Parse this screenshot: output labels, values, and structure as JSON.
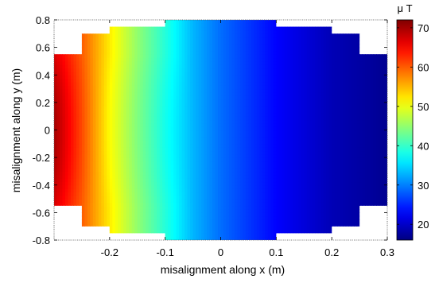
{
  "chart_data": {
    "type": "heatmap",
    "title": "",
    "xlabel": "misalignment along x (m)",
    "ylabel": "misalignment along y (m)",
    "xlim": [
      -0.3,
      0.3
    ],
    "ylim": [
      -0.8,
      0.8
    ],
    "xticks": [
      -0.2,
      -0.1,
      0,
      0.1,
      0.2,
      0.3
    ],
    "xtick_labels": [
      "-0.2",
      "-0.1",
      "0",
      "0.1",
      "0.2",
      "0.3"
    ],
    "yticks": [
      -0.8,
      -0.6,
      -0.4,
      -0.2,
      0,
      0.2,
      0.4,
      0.6,
      0.8
    ],
    "ytick_labels": [
      "-0.8",
      "-0.6",
      "-0.4",
      "-0.2",
      "0",
      "0.2",
      "0.4",
      "0.6",
      "0.8"
    ],
    "grid": false,
    "colormap": "jet",
    "colorbar": {
      "label": "μ T",
      "range": [
        16,
        72
      ],
      "ticks": [
        20,
        30,
        40,
        50,
        60,
        70
      ],
      "tick_labels": [
        "20",
        "30",
        "40",
        "50",
        "60",
        "70"
      ],
      "placement": "right"
    },
    "domain_y_extent_by_x": [
      {
        "x_range": [
          -0.3,
          -0.25
        ],
        "y_range": [
          -0.55,
          0.55
        ]
      },
      {
        "x_range": [
          -0.25,
          -0.2
        ],
        "y_range": [
          -0.7,
          0.7
        ]
      },
      {
        "x_range": [
          -0.2,
          -0.1
        ],
        "y_range": [
          -0.75,
          0.75
        ]
      },
      {
        "x_range": [
          -0.1,
          0.1
        ],
        "y_range": [
          -0.8,
          0.8
        ]
      },
      {
        "x_range": [
          0.1,
          0.2
        ],
        "y_range": [
          -0.75,
          0.75
        ]
      },
      {
        "x_range": [
          0.2,
          0.25
        ],
        "y_range": [
          -0.7,
          0.7
        ]
      },
      {
        "x_range": [
          0.25,
          0.3
        ],
        "y_range": [
          -0.55,
          0.55
        ]
      }
    ],
    "field_profile_along_x": {
      "x": [
        -0.3,
        -0.25,
        -0.2,
        -0.15,
        -0.1,
        -0.05,
        0,
        0.05,
        0.1,
        0.15,
        0.2,
        0.25,
        0.3
      ],
      "y_at_0": [
        70,
        61,
        51,
        44,
        38,
        33,
        29,
        26,
        23,
        21,
        19,
        18,
        17
      ],
      "y_at_edge": [
        67,
        60,
        52,
        45,
        39,
        33,
        29,
        26,
        23,
        21,
        19,
        18,
        17
      ]
    }
  }
}
